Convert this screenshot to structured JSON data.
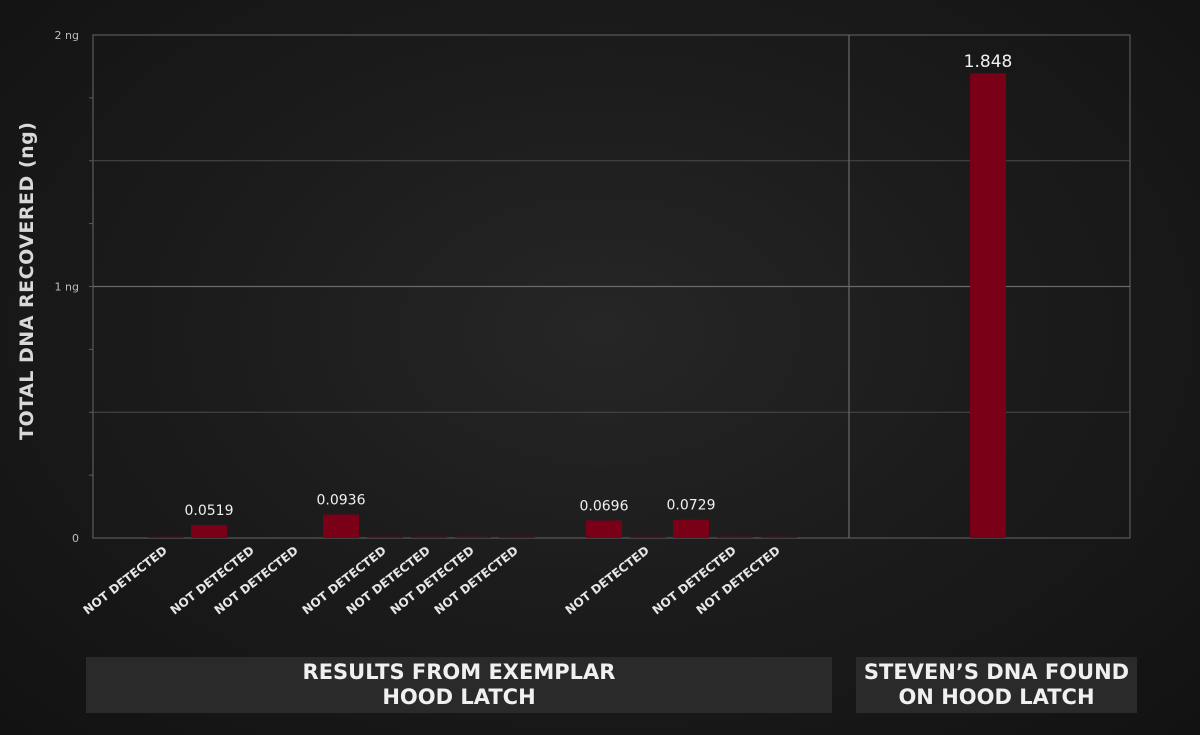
{
  "chart_data": {
    "type": "bar",
    "ylabel": "TOTAL DNA RECOVERED (ng)",
    "ylim": [
      0,
      2
    ],
    "yticks": [
      {
        "value": 0,
        "label": "0"
      },
      {
        "value": 1,
        "label": "1 ng"
      },
      {
        "value": 2,
        "label": "2 ng"
      }
    ],
    "grid": true,
    "bar_color": "#7a0018",
    "series": [
      {
        "values": [
          0.005,
          0.0519,
          null,
          null,
          0.0936,
          0.005,
          0.005,
          0.005,
          0.005,
          0.0696,
          0.005,
          0.0729,
          0.005,
          0.005,
          1.848
        ]
      }
    ],
    "data_labels": [
      "",
      "0.0519",
      "",
      "",
      "0.0936",
      "",
      "",
      "",
      "",
      "0.0696",
      "",
      "0.0729",
      "",
      "",
      "1.848"
    ],
    "category_labels": [
      "NOT DETECTED",
      "",
      "NOT DETECTED",
      "NOT DETECTED",
      "",
      "NOT DETECTED",
      "NOT DETECTED",
      "NOT DETECTED",
      "NOT DETECTED",
      "",
      "NOT DETECTED",
      "",
      "NOT DETECTED",
      "NOT DETECTED",
      ""
    ],
    "groups": [
      {
        "label_line1": "RESULTS FROM EXEMPLAR",
        "label_line2": "HOOD LATCH"
      },
      {
        "label_line1": "STEVEN’S DNA FOUND",
        "label_line2": "ON HOOD LATCH"
      }
    ]
  }
}
